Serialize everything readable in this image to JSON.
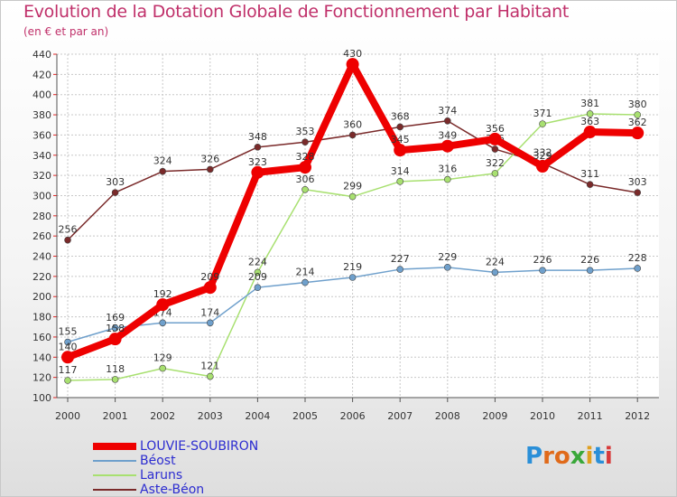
{
  "chart_data": {
    "type": "line",
    "title": "Evolution de la Dotation Globale de Fonctionnement par Habitant",
    "subtitle": "(en € et par an)",
    "categories": [
      "2000",
      "2001",
      "2002",
      "2003",
      "2004",
      "2005",
      "2006",
      "2007",
      "2008",
      "2009",
      "2010",
      "2011",
      "2012"
    ],
    "ylim": [
      100,
      440
    ],
    "yticks": [
      100,
      120,
      140,
      160,
      180,
      200,
      220,
      240,
      260,
      280,
      300,
      320,
      340,
      360,
      380,
      400,
      420,
      440
    ],
    "grid": true,
    "legend_position": "bottom-left",
    "series": [
      {
        "name": "Aste-Béon",
        "color": "#7a2a2a",
        "values": [
          256,
          303,
          324,
          326,
          348,
          353,
          360,
          368,
          374,
          346,
          332,
          311,
          303
        ]
      },
      {
        "name": "Laruns",
        "color": "#a8e070",
        "values": [
          117,
          118,
          129,
          121,
          224,
          306,
          299,
          314,
          316,
          322,
          371,
          381,
          380
        ]
      },
      {
        "name": "Béost",
        "color": "#6fa0cc",
        "values": [
          155,
          169,
          174,
          174,
          209,
          214,
          219,
          227,
          229,
          224,
          226,
          226,
          228
        ]
      },
      {
        "name": "LOUVIE-SOUBIRON",
        "color": "#ee0000",
        "values": [
          140,
          158,
          192,
          209,
          323,
          328,
          430,
          345,
          349,
          356,
          329,
          363,
          362
        ]
      }
    ],
    "legend": [
      "LOUVIE-SOUBIRON",
      "Béost",
      "Laruns",
      "Aste-Béon"
    ]
  },
  "logo": {
    "text": "Proxiti",
    "letters": [
      "P",
      "r",
      "o",
      "x",
      "i",
      "t",
      "i"
    ],
    "colors": [
      "#2a8fd8",
      "#e06a1a",
      "#e06a1a",
      "#3aa83a",
      "#e0a020",
      "#2a8fd8",
      "#d83a3a"
    ]
  }
}
